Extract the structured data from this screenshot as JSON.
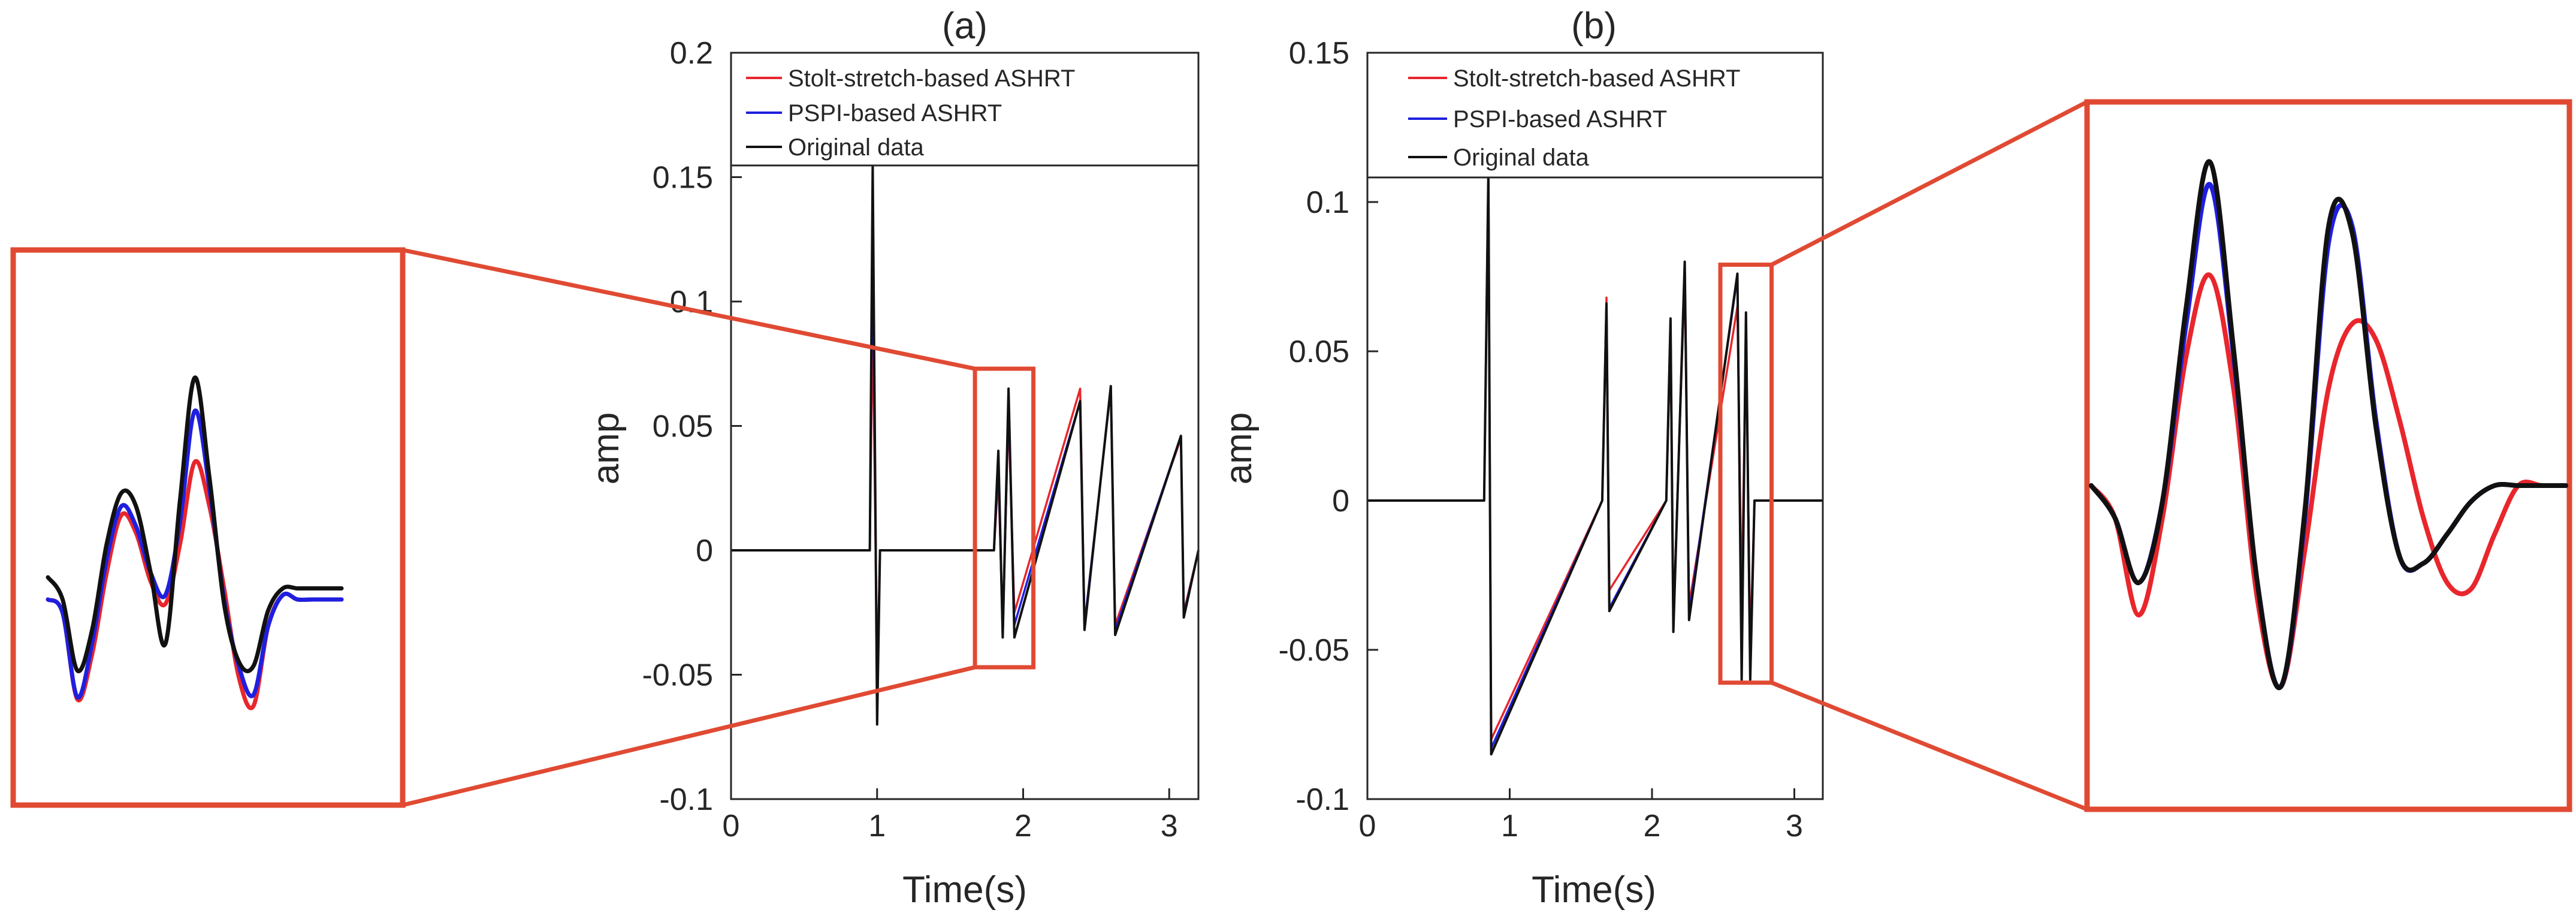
{
  "colors": {
    "stolt": "#e8262c",
    "pspi": "#1f1fe0",
    "original": "#111111",
    "zoom_box": "#e04a33",
    "axis": "#262626"
  },
  "legend": {
    "items": [
      {
        "label": "Stolt-stretch-based ASHRT",
        "color": "#e8262c"
      },
      {
        "label": "PSPI-based ASHRT",
        "color": "#1f1fe0"
      },
      {
        "label": "Original data",
        "color": "#111111"
      }
    ]
  },
  "chart_data": [
    {
      "type": "line",
      "title": "(a)",
      "xlabel": "Time(s)",
      "ylabel": "amp",
      "xlim": [
        0,
        3.2
      ],
      "ylim": [
        -0.1,
        0.2
      ],
      "xticks": [
        0,
        1,
        2,
        3
      ],
      "xtick_labels": [
        "0",
        "1",
        "2",
        "3"
      ],
      "yticks": [
        -0.1,
        -0.05,
        0,
        0.05,
        0.1,
        0.15,
        0.2
      ],
      "ytick_labels": [
        "-0.1",
        "-0.05",
        "0",
        "0.05",
        "0.1",
        "0.15",
        "0.2"
      ],
      "series": [
        {
          "name": "Stolt-stretch-based ASHRT",
          "x": [
            0,
            0.95,
            0.97,
            1.0,
            1.02,
            1.8,
            1.83,
            1.86,
            1.9,
            1.94,
            2.39,
            2.42,
            2.6,
            2.63,
            3.08,
            3.1,
            3.2
          ],
          "y": [
            0,
            0,
            0.095,
            -0.05,
            0,
            0,
            0.03,
            -0.03,
            0.055,
            -0.025,
            0.065,
            -0.03,
            0.065,
            -0.03,
            0.045,
            -0.025,
            0
          ]
        },
        {
          "name": "PSPI-based ASHRT",
          "x": [
            0,
            0.95,
            0.97,
            1.0,
            1.02,
            1.8,
            1.83,
            1.86,
            1.9,
            1.94,
            2.39,
            2.42,
            2.6,
            2.63,
            3.08,
            3.1,
            3.2
          ],
          "y": [
            0,
            0,
            0.13,
            -0.06,
            0,
            0,
            0.035,
            -0.035,
            0.06,
            -0.03,
            0.06,
            -0.03,
            0.065,
            -0.032,
            0.046,
            -0.026,
            0
          ]
        },
        {
          "name": "Original data",
          "x": [
            0,
            0.95,
            0.97,
            1.0,
            1.02,
            1.8,
            1.83,
            1.86,
            1.9,
            1.94,
            2.39,
            2.42,
            2.6,
            2.63,
            3.08,
            3.1,
            3.2
          ],
          "y": [
            0,
            0,
            0.155,
            -0.07,
            0,
            0,
            0.04,
            -0.035,
            0.065,
            -0.035,
            0.06,
            -0.032,
            0.066,
            -0.034,
            0.046,
            -0.027,
            0
          ]
        }
      ],
      "zoom_window": {
        "x": [
          1.67,
          2.07
        ],
        "y": [
          -0.047,
          0.073
        ]
      }
    },
    {
      "type": "line",
      "title": "(b)",
      "xlabel": "Time(s)",
      "ylabel": "amp",
      "xlim": [
        0,
        3.2
      ],
      "ylim": [
        -0.1,
        0.15
      ],
      "xticks": [
        0,
        1,
        2,
        3
      ],
      "xtick_labels": [
        "0",
        "1",
        "2",
        "3"
      ],
      "yticks": [
        -0.1,
        -0.05,
        0,
        0.05,
        0.1,
        0.15
      ],
      "ytick_labels": [
        "-0.1",
        "-0.05",
        "0",
        "0.05",
        "0.1",
        "0.15"
      ],
      "series": [
        {
          "name": "Stolt-stretch-based ASHRT",
          "x": [
            0,
            0.82,
            0.85,
            0.87,
            1.65,
            1.68,
            1.7,
            2.1,
            2.13,
            2.15,
            2.23,
            2.26,
            2.6,
            2.63,
            2.66,
            2.69,
            2.72,
            3.2
          ],
          "y": [
            0,
            0,
            0.11,
            -0.08,
            0,
            0.068,
            -0.03,
            0,
            0.055,
            -0.04,
            0.075,
            -0.035,
            0.065,
            -0.035,
            0.055,
            -0.05,
            0,
            0
          ]
        },
        {
          "name": "PSPI-based ASHRT",
          "x": [
            0,
            0.82,
            0.85,
            0.87,
            1.65,
            1.68,
            1.7,
            2.1,
            2.13,
            2.15,
            2.23,
            2.26,
            2.6,
            2.63,
            2.66,
            2.69,
            2.72,
            3.2
          ],
          "y": [
            0,
            0,
            0.11,
            -0.083,
            0,
            0.066,
            -0.036,
            0,
            0.06,
            -0.043,
            0.08,
            -0.038,
            0.075,
            -0.055,
            0.063,
            -0.058,
            0,
            0
          ]
        },
        {
          "name": "Original data",
          "x": [
            0,
            0.82,
            0.85,
            0.87,
            1.65,
            1.68,
            1.7,
            2.1,
            2.13,
            2.15,
            2.23,
            2.26,
            2.6,
            2.63,
            2.66,
            2.69,
            2.72,
            3.2
          ],
          "y": [
            0,
            0,
            0.11,
            -0.085,
            0,
            0.066,
            -0.037,
            0,
            0.061,
            -0.044,
            0.08,
            -0.04,
            0.076,
            -0.06,
            0.063,
            -0.06,
            0,
            0
          ]
        }
      ],
      "zoom_window": {
        "x": [
          2.48,
          2.84
        ],
        "y": [
          -0.061,
          0.079
        ]
      }
    }
  ],
  "insets": [
    {
      "panel": "(a)",
      "side": "left",
      "t": [
        0,
        0.05,
        0.1,
        0.15,
        0.2,
        0.25,
        0.3,
        0.35,
        0.4,
        0.45,
        0.5,
        0.55,
        0.6,
        0.65,
        0.7,
        0.75,
        0.8,
        0.85,
        0.9,
        0.95,
        1.0
      ],
      "series": [
        {
          "name": "Stolt-stretch-based ASHRT",
          "y": [
            0.0,
            -0.06,
            -0.45,
            -0.25,
            0.12,
            0.38,
            0.3,
            0.08,
            -0.02,
            0.25,
            0.62,
            0.42,
            0.05,
            -0.35,
            -0.48,
            -0.12,
            0.02,
            0.0,
            0.0,
            0.0,
            0.0
          ]
        },
        {
          "name": "PSPI-based ASHRT",
          "y": [
            0.0,
            -0.06,
            -0.44,
            -0.2,
            0.18,
            0.42,
            0.33,
            0.12,
            0.02,
            0.35,
            0.85,
            0.5,
            0.0,
            -0.3,
            -0.43,
            -0.12,
            0.02,
            0.0,
            0.0,
            0.0,
            0.0
          ]
        },
        {
          "name": "Original data",
          "y": [
            0.1,
            0.0,
            -0.32,
            -0.14,
            0.25,
            0.48,
            0.42,
            0.12,
            -0.2,
            0.45,
            1.0,
            0.55,
            -0.02,
            -0.28,
            -0.3,
            -0.05,
            0.05,
            0.05,
            0.05,
            0.05,
            0.05
          ]
        }
      ]
    },
    {
      "panel": "(b)",
      "side": "right",
      "t": [
        0,
        0.05,
        0.1,
        0.15,
        0.2,
        0.25,
        0.3,
        0.35,
        0.4,
        0.45,
        0.5,
        0.55,
        0.6,
        0.65,
        0.7,
        0.75,
        0.8,
        0.85,
        0.9,
        0.95,
        1.0
      ],
      "series": [
        {
          "name": "Stolt-stretch-based ASHRT",
          "y": [
            0.0,
            -0.1,
            -0.4,
            -0.1,
            0.4,
            0.65,
            0.3,
            -0.35,
            -0.62,
            -0.2,
            0.3,
            0.5,
            0.45,
            0.2,
            -0.1,
            -0.3,
            -0.32,
            -0.15,
            0.0,
            0.0,
            0.0
          ]
        },
        {
          "name": "PSPI-based ASHRT",
          "y": [
            0.0,
            -0.1,
            -0.3,
            -0.05,
            0.5,
            0.93,
            0.4,
            -0.3,
            -0.62,
            -0.1,
            0.75,
            0.8,
            0.2,
            -0.22,
            -0.24,
            -0.15,
            -0.05,
            0.0,
            0.0,
            0.0,
            0.0
          ]
        },
        {
          "name": "Original data",
          "y": [
            0.0,
            -0.1,
            -0.3,
            -0.05,
            0.55,
            1.0,
            0.42,
            -0.3,
            -0.62,
            -0.08,
            0.8,
            0.78,
            0.18,
            -0.22,
            -0.24,
            -0.15,
            -0.05,
            0.0,
            0.0,
            0.0,
            0.0
          ]
        }
      ]
    }
  ]
}
